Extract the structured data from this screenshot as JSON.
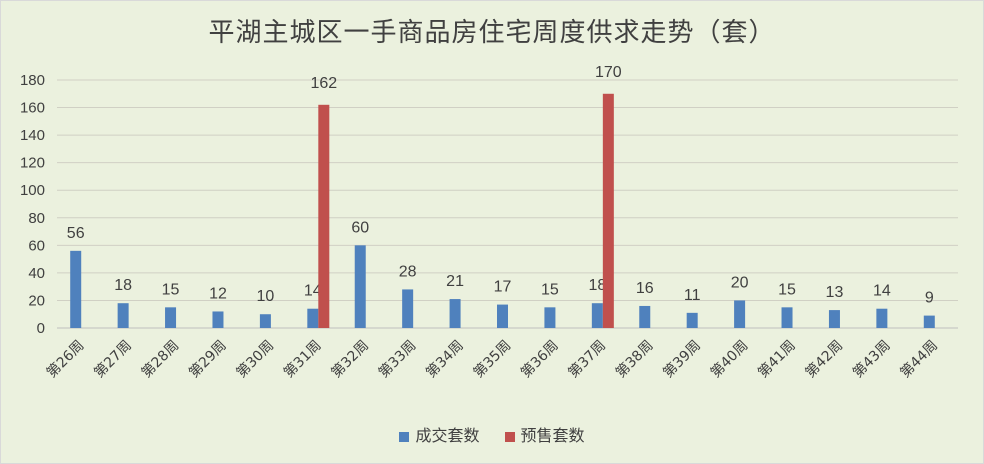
{
  "chart_data": {
    "type": "bar",
    "title": "平湖主城区一手商品房住宅周度供求走势（套）",
    "categories": [
      "第26周",
      "第27周",
      "第28周",
      "第29周",
      "第30周",
      "第31周",
      "第32周",
      "第33周",
      "第34周",
      "第35周",
      "第36周",
      "第37周",
      "第38周",
      "第39周",
      "第40周",
      "第41周",
      "第42周",
      "第43周",
      "第44周"
    ],
    "series": [
      {
        "name": "成交套数",
        "color": "#4f81bd",
        "values": [
          56,
          18,
          15,
          12,
          10,
          14,
          60,
          28,
          21,
          17,
          15,
          18,
          16,
          11,
          20,
          15,
          13,
          14,
          9
        ]
      },
      {
        "name": "预售套数",
        "color": "#c0504d",
        "values": [
          0,
          0,
          0,
          0,
          0,
          162,
          0,
          0,
          0,
          0,
          0,
          170,
          0,
          0,
          0,
          0,
          0,
          0,
          0
        ]
      }
    ],
    "ylim": [
      0,
      180
    ],
    "yticks": [
      0,
      20,
      40,
      60,
      80,
      100,
      120,
      140,
      160,
      180
    ],
    "grid": true,
    "legend": "bottom"
  }
}
